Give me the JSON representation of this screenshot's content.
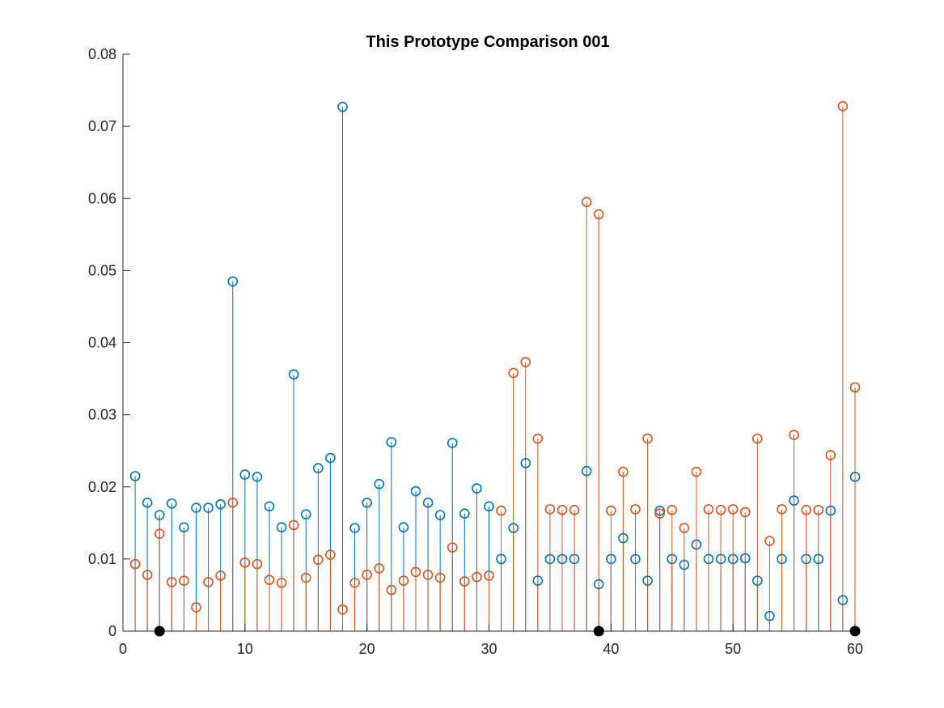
{
  "chart_data": {
    "type": "stem",
    "title": "This Prototype Comparison 001",
    "xlim": [
      0,
      60
    ],
    "ylim": [
      0,
      0.08
    ],
    "x_ticks": [
      0,
      10,
      20,
      30,
      40,
      50,
      60
    ],
    "y_ticks": [
      0,
      0.01,
      0.02,
      0.03,
      0.04,
      0.05,
      0.06,
      0.07,
      0.08
    ],
    "x_tick_labels": [
      "0",
      "10",
      "20",
      "30",
      "40",
      "50",
      "60"
    ],
    "y_tick_labels": [
      "0",
      "0.01",
      "0.02",
      "0.03",
      "0.04",
      "0.05",
      "0.06",
      "0.07",
      "0.08"
    ],
    "grid": false,
    "x": [
      1,
      2,
      3,
      4,
      5,
      6,
      7,
      8,
      9,
      10,
      11,
      12,
      13,
      14,
      15,
      16,
      17,
      18,
      19,
      20,
      21,
      22,
      23,
      24,
      25,
      26,
      27,
      28,
      29,
      30,
      31,
      32,
      33,
      34,
      35,
      36,
      37,
      38,
      39,
      40,
      41,
      42,
      43,
      44,
      45,
      46,
      47,
      48,
      49,
      50,
      51,
      52,
      53,
      54,
      55,
      56,
      57,
      58,
      59,
      60
    ],
    "series": [
      {
        "color": "#0072BD",
        "marker": "open-circle",
        "values": [
          0.0215,
          0.0178,
          0.0161,
          0.0177,
          0.0144,
          0.0171,
          0.0171,
          0.0176,
          0.0485,
          0.0217,
          0.0214,
          0.0173,
          0.0144,
          0.0356,
          0.0162,
          0.0226,
          0.024,
          0.0727,
          0.0143,
          0.0178,
          0.0204,
          0.0262,
          0.0144,
          0.0194,
          0.0178,
          0.0161,
          0.0261,
          0.0163,
          0.0198,
          0.0173,
          0.01,
          0.0143,
          0.0233,
          0.007,
          0.01,
          0.01,
          0.01,
          0.0222,
          0.0065,
          0.01,
          0.0129,
          0.01,
          0.007,
          0.0167,
          0.01,
          0.0092,
          0.012,
          0.01,
          0.01,
          0.01,
          0.0101,
          0.007,
          0.0021,
          0.01,
          0.0181,
          0.01,
          0.01,
          0.0167,
          0.0043,
          0.0214
        ]
      },
      {
        "color": "#D95319",
        "marker": "open-circle",
        "values": [
          0.0093,
          0.0078,
          0.0135,
          0.0068,
          0.007,
          0.0033,
          0.0068,
          0.0077,
          0.0178,
          0.0095,
          0.0093,
          0.0071,
          0.0067,
          0.0147,
          0.0074,
          0.0099,
          0.0106,
          0.003,
          0.0067,
          0.0078,
          0.0087,
          0.0057,
          0.007,
          0.0082,
          0.0078,
          0.0074,
          0.0116,
          0.0069,
          0.0075,
          0.0077,
          0.0167,
          0.0358,
          0.0373,
          0.0267,
          0.0169,
          0.0168,
          0.0168,
          0.0595,
          0.0578,
          0.0167,
          0.0221,
          0.0169,
          0.0267,
          0.0163,
          0.0168,
          0.0143,
          0.0221,
          0.0169,
          0.0168,
          0.0169,
          0.0165,
          0.0267,
          0.0125,
          0.0169,
          0.0272,
          0.0168,
          0.0168,
          0.0244,
          0.0728,
          0.0338
        ]
      }
    ],
    "highlight_points": {
      "color": "#000000",
      "marker": "filled-circle",
      "x": [
        3,
        39,
        60
      ],
      "y": [
        0,
        0,
        0
      ]
    }
  }
}
